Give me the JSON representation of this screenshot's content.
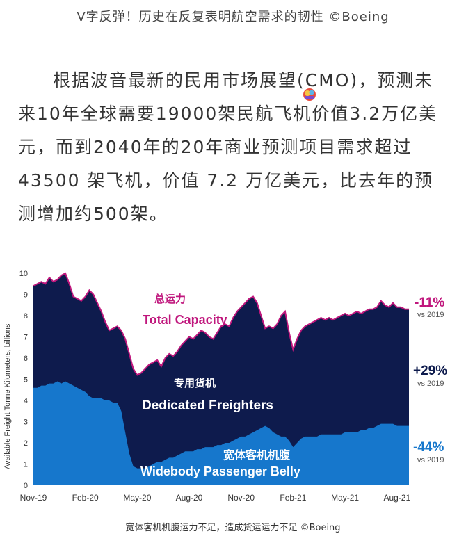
{
  "header": {
    "caption": "V字反弹！历史在反复表明航空需求的韧性 ©Boeing"
  },
  "article": {
    "paragraph": "根据波音最新的民用市场展望(CMO)，预测未来10年全球需要19000架民航飞机价值3.2万亿美元，而到2040年的20年商业预测项目需求超过43500 架飞机，价值 7.2 万亿美元，比去年的预测增加约500架。"
  },
  "footer": {
    "caption": "宽体客机机腹运力不足，造成货运运力不足 ©Boeing"
  },
  "colors": {
    "total": "#0e1b4d",
    "belly": "#1677cc",
    "total_line": "#c0177d",
    "label_total": "#c0177d",
    "label_freighter": "#ffffff",
    "pct_total": "#c0177d",
    "pct_freighter": "#0e1b4d",
    "pct_belly": "#1677cc"
  },
  "chart_data": {
    "type": "area",
    "title": "",
    "xlabel": "",
    "ylabel": "Available Freight Tonne Kilometers, billions",
    "ylim": [
      0,
      10
    ],
    "yticks": [
      "0",
      "1",
      "2",
      "3",
      "4",
      "5",
      "6",
      "7",
      "8",
      "9",
      "10"
    ],
    "xticks": [
      "Nov-19",
      "Feb-20",
      "May-20",
      "Aug-20",
      "Nov-20",
      "Feb-21",
      "May-21",
      "Aug-21"
    ],
    "grid": false,
    "x_weeks_span": [
      0,
      94
    ],
    "series": [
      {
        "name": "总运力 Total Capacity",
        "values": [
          9.4,
          9.5,
          9.6,
          9.5,
          9.8,
          9.6,
          9.7,
          9.9,
          10.0,
          9.5,
          8.9,
          8.8,
          8.7,
          8.9,
          9.2,
          9.0,
          8.6,
          8.2,
          7.7,
          7.3,
          7.4,
          7.5,
          7.3,
          6.9,
          6.2,
          5.5,
          5.2,
          5.3,
          5.5,
          5.7,
          5.8,
          5.9,
          5.6,
          6.0,
          6.2,
          6.1,
          6.3,
          6.6,
          6.8,
          7.0,
          6.9,
          7.1,
          7.3,
          7.2,
          7.0,
          6.9,
          7.2,
          7.5,
          7.6,
          7.5,
          7.9,
          8.2,
          8.4,
          8.6,
          8.8,
          8.9,
          8.6,
          8.0,
          7.4,
          7.5,
          7.4,
          7.6,
          8.0,
          8.2,
          7.2,
          6.4,
          6.9,
          7.3,
          7.5,
          7.6,
          7.7,
          7.8,
          7.9,
          7.8,
          7.9,
          7.8,
          7.9,
          8.0,
          8.1,
          8.0,
          8.1,
          8.2,
          8.1,
          8.2,
          8.3,
          8.3,
          8.4,
          8.7,
          8.5,
          8.4,
          8.6,
          8.4,
          8.4,
          8.3,
          8.3
        ]
      },
      {
        "name": "专用货机 Dedicated Freighters",
        "values": []
      },
      {
        "name": "宽体客机机腹 Widebody Passenger Belly",
        "values": [
          4.6,
          4.6,
          4.7,
          4.7,
          4.8,
          4.8,
          4.9,
          4.8,
          4.9,
          4.8,
          4.7,
          4.6,
          4.5,
          4.4,
          4.2,
          4.1,
          4.1,
          4.1,
          4.0,
          4.0,
          3.9,
          3.9,
          3.5,
          2.5,
          1.5,
          0.9,
          0.8,
          0.8,
          0.8,
          0.9,
          1.0,
          1.1,
          1.1,
          1.2,
          1.3,
          1.3,
          1.4,
          1.5,
          1.6,
          1.6,
          1.6,
          1.7,
          1.7,
          1.8,
          1.8,
          1.8,
          1.9,
          1.9,
          2.0,
          2.0,
          2.1,
          2.2,
          2.3,
          2.3,
          2.4,
          2.5,
          2.6,
          2.7,
          2.8,
          2.7,
          2.5,
          2.4,
          2.3,
          2.3,
          2.1,
          1.8,
          2.0,
          2.2,
          2.3,
          2.3,
          2.3,
          2.3,
          2.4,
          2.4,
          2.4,
          2.4,
          2.4,
          2.4,
          2.5,
          2.5,
          2.5,
          2.5,
          2.6,
          2.6,
          2.7,
          2.7,
          2.8,
          2.9,
          2.9,
          2.9,
          2.9,
          2.8,
          2.8,
          2.8,
          2.8
        ]
      }
    ],
    "annotations": {
      "total_cn": "总运力",
      "total_en": "Total Capacity",
      "freighter_cn": "专用货机",
      "freighter_en": "Dedicated Freighters",
      "belly_cn": "宽体客机机腹",
      "belly_en": "Widebody Passenger Belly"
    },
    "changes": [
      {
        "value": "-11%",
        "ref": "vs 2019"
      },
      {
        "value": "+29%",
        "ref": "vs 2019"
      },
      {
        "value": "-44%",
        "ref": "vs 2019"
      }
    ]
  }
}
